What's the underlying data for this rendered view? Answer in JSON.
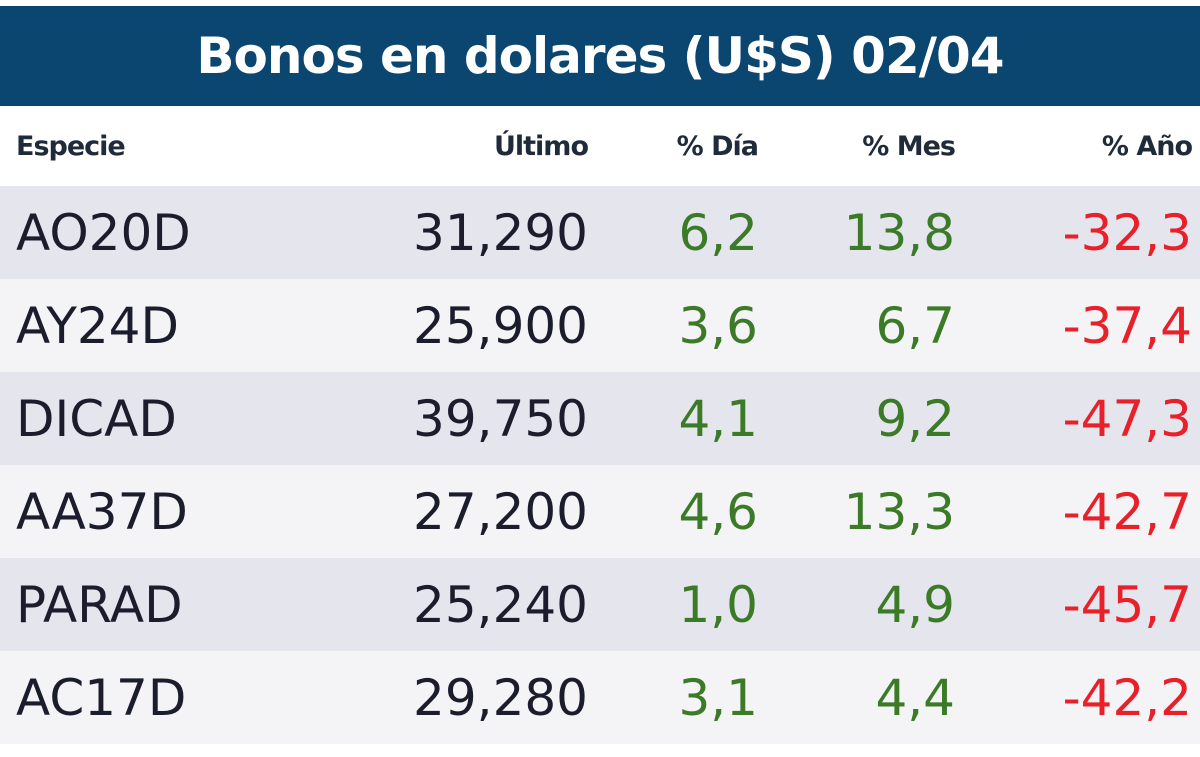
{
  "header": {
    "title": "Bonos en dolares (U$S) 02/04"
  },
  "table": {
    "columns": [
      "Especie",
      "Último",
      "% Día",
      "% Mes",
      "% Año"
    ],
    "rows": [
      [
        "AO20D",
        "31,290",
        "6,2",
        "13,8",
        "-32,3"
      ],
      [
        "AY24D",
        "25,900",
        "3,6",
        "6,7",
        "-37,4"
      ],
      [
        "DICAD",
        "39,750",
        "4,1",
        "9,2",
        "-47,3"
      ],
      [
        "AA37D",
        "27,200",
        "4,6",
        "13,3",
        "-42,7"
      ],
      [
        "PARAD",
        "25,240",
        "1,0",
        "4,9",
        "-45,7"
      ],
      [
        "AC17D",
        "29,280",
        "3,1",
        "4,4",
        "-42,2"
      ]
    ]
  }
}
